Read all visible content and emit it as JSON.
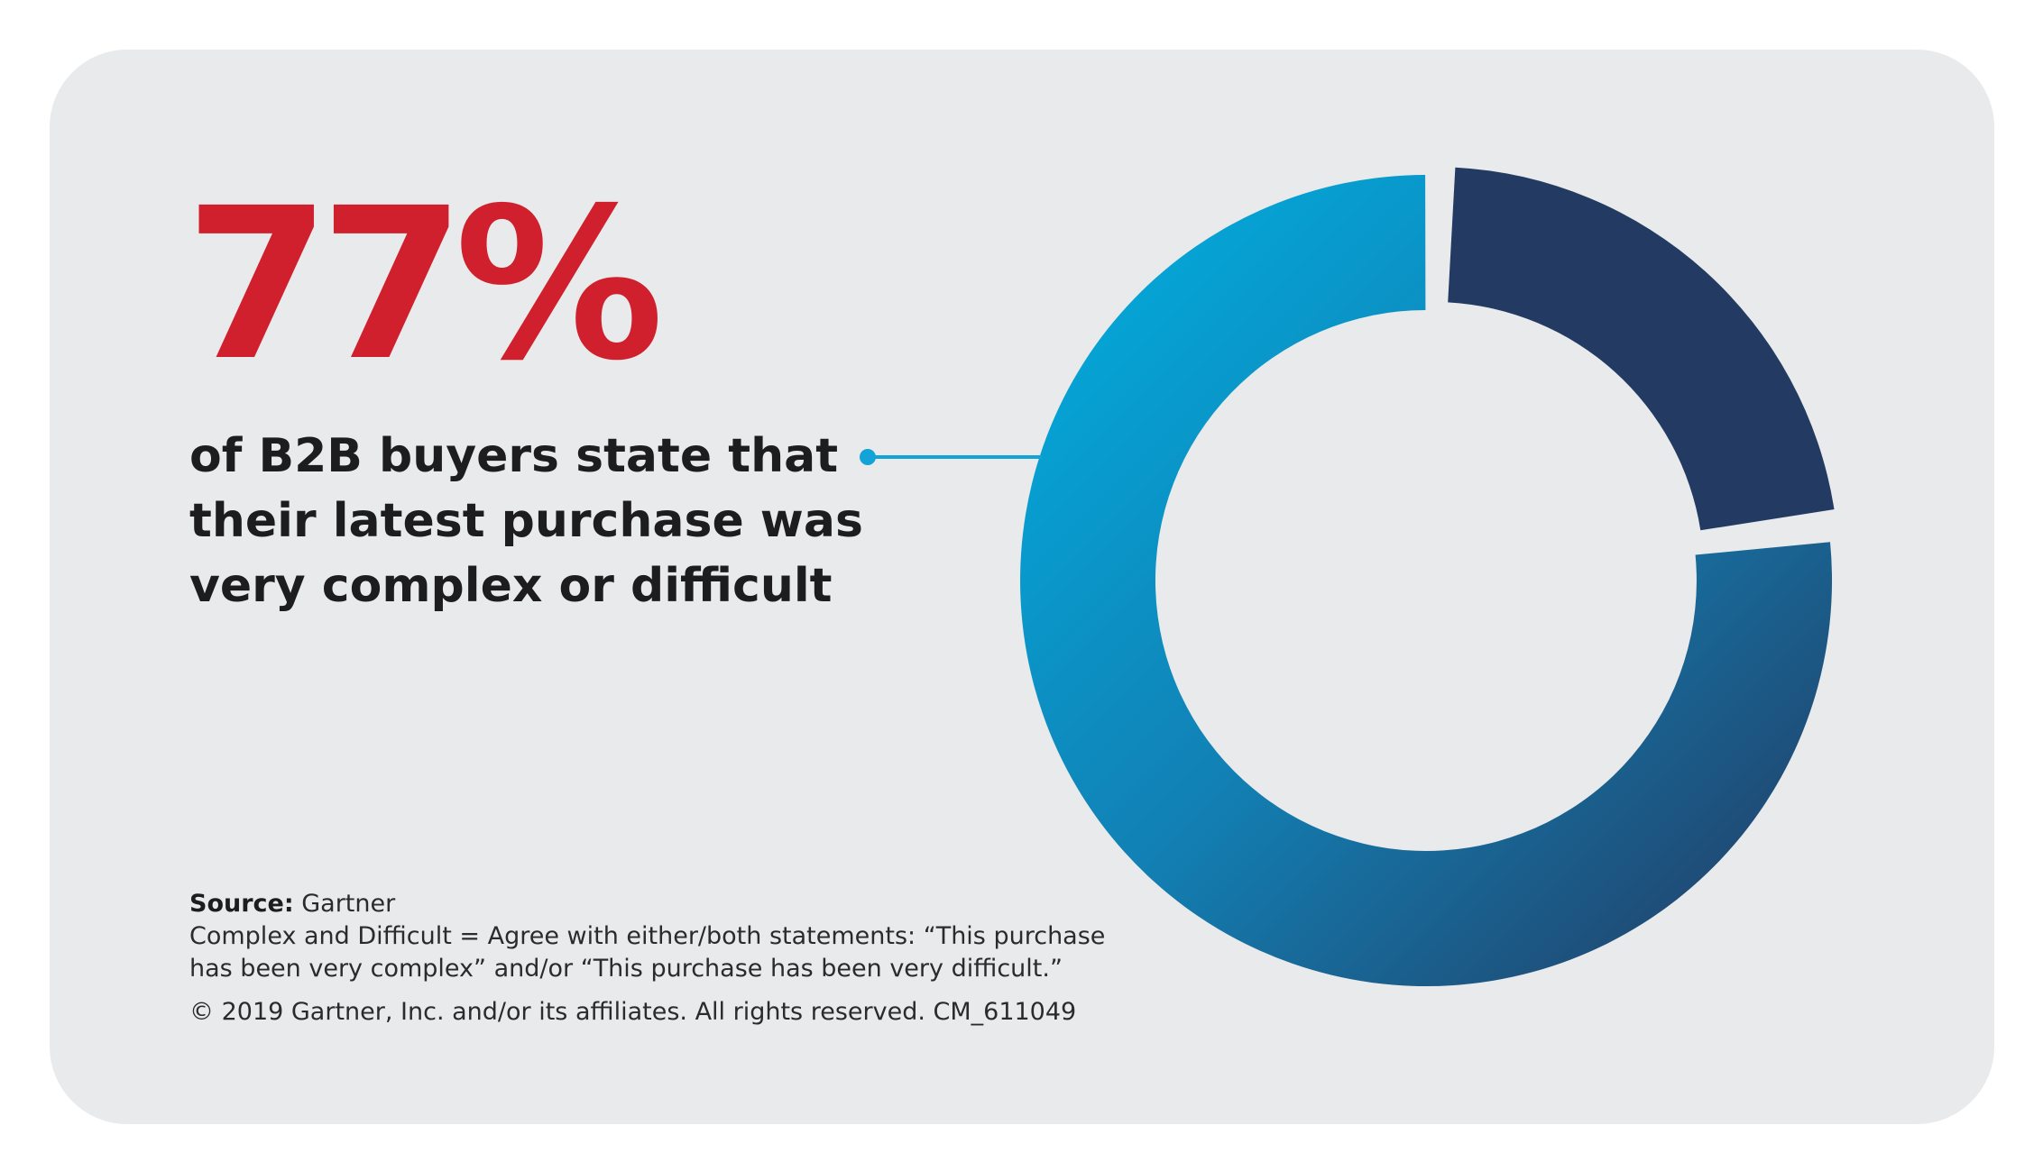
{
  "stat": {
    "value": "77%",
    "color": "#d0202e"
  },
  "headline": {
    "lines": [
      "of B2B buyers state that",
      "their latest purchase was",
      "very complex or difficult"
    ]
  },
  "footnote": {
    "source_label": "Source:",
    "source_value": " Gartner",
    "definition_lines": [
      "Complex and Difficult = Agree with either/both statements: “This purchase",
      "has been very complex” and/or “This purchase has been very difficult.”"
    ],
    "copyright": "© 2019 Gartner, Inc. and/or its affiliates. All rights reserved. CM_611049"
  },
  "colors": {
    "card_background": "#e9eaeb",
    "accent_light_blue": "#00a9dc",
    "deep_blue": "#1f6090",
    "navy": "#233b62",
    "leader_line": "#14a3d6"
  },
  "chart_data": {
    "type": "pie",
    "style": "donut",
    "slices": [
      {
        "value": 77,
        "color_from": "#00a9dc",
        "color_to": "#233b62"
      },
      {
        "value": 23,
        "color": "#233b62"
      }
    ]
  }
}
